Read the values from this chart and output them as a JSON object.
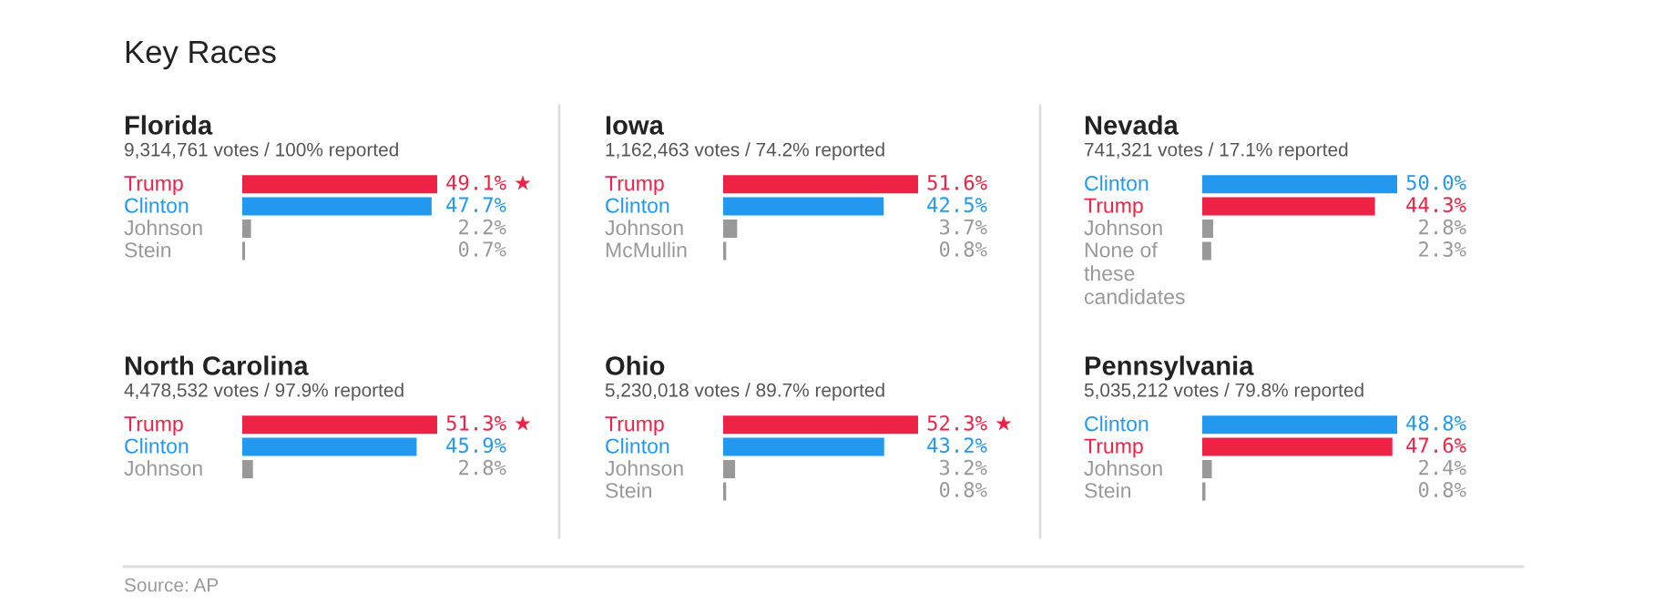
{
  "chart_data": [
    {
      "type": "other",
      "title": "Key Races",
      "annotations": [
        "Source: AP"
      ]
    },
    {
      "type": "bar",
      "orientation": "horizontal",
      "title": "Florida",
      "subtitle": "9,314,761 votes / 100% reported",
      "categories": [
        "Trump",
        "Clinton",
        "Johnson",
        "Stein"
      ],
      "values": [
        49.1,
        47.7,
        2.2,
        0.7
      ],
      "value_labels": [
        "49.1%",
        "47.7%",
        "2.2%",
        "0.7%"
      ],
      "colors": [
        "#ee2244",
        "#2299ee",
        "#999999",
        "#999999"
      ],
      "annotations": [
        "★"
      ],
      "tick_labels": "y",
      "grid": false,
      "legend": false
    },
    {
      "type": "bar",
      "orientation": "horizontal",
      "title": "Iowa",
      "subtitle": "1,162,463 votes / 74.2% reported",
      "categories": [
        "Trump",
        "Clinton",
        "Johnson",
        "McMullin"
      ],
      "values": [
        51.6,
        42.5,
        3.7,
        0.8
      ],
      "value_labels": [
        "51.6%",
        "42.5%",
        "3.7%",
        "0.8%"
      ],
      "colors": [
        "#ee2244",
        "#2299ee",
        "#999999",
        "#999999"
      ],
      "tick_labels": "y",
      "grid": false,
      "legend": false
    },
    {
      "type": "bar",
      "orientation": "horizontal",
      "title": "Nevada",
      "subtitle": "741,321 votes / 17.1% reported",
      "categories": [
        "Clinton",
        "Trump",
        "Johnson",
        "None of\nthese\ncandidates"
      ],
      "values": [
        50.0,
        44.3,
        2.8,
        2.3
      ],
      "value_labels": [
        "50.0%",
        "44.3%",
        "2.8%",
        "2.3%"
      ],
      "colors": [
        "#2299ee",
        "#ee2244",
        "#999999",
        "#999999"
      ],
      "tick_labels": "y",
      "grid": false,
      "legend": false
    },
    {
      "type": "bar",
      "orientation": "horizontal",
      "title": "North Carolina",
      "subtitle": "4,478,532 votes / 97.9% reported",
      "categories": [
        "Trump",
        "Clinton",
        "Johnson"
      ],
      "values": [
        51.3,
        45.9,
        2.8
      ],
      "value_labels": [
        "51.3%",
        "45.9%",
        "2.8%"
      ],
      "colors": [
        "#ee2244",
        "#2299ee",
        "#999999"
      ],
      "annotations": [
        "★"
      ],
      "tick_labels": "y",
      "grid": false,
      "legend": false
    },
    {
      "type": "bar",
      "orientation": "horizontal",
      "title": "Ohio",
      "subtitle": "5,230,018 votes / 89.7% reported",
      "categories": [
        "Trump",
        "Clinton",
        "Johnson",
        "Stein"
      ],
      "values": [
        52.3,
        43.2,
        3.2,
        0.8
      ],
      "value_labels": [
        "52.3%",
        "43.2%",
        "3.2%",
        "0.8%"
      ],
      "colors": [
        "#ee2244",
        "#2299ee",
        "#999999",
        "#999999"
      ],
      "annotations": [
        "★"
      ],
      "tick_labels": "y",
      "grid": false,
      "legend": false
    },
    {
      "type": "bar",
      "orientation": "horizontal",
      "title": "Pennsylvania",
      "subtitle": "5,035,212 votes / 79.8% reported",
      "categories": [
        "Clinton",
        "Trump",
        "Johnson",
        "Stein"
      ],
      "values": [
        48.8,
        47.6,
        2.4,
        0.8
      ],
      "value_labels": [
        "48.8%",
        "47.6%",
        "2.4%",
        "0.8%"
      ],
      "colors": [
        "#2299ee",
        "#ee2244",
        "#999999",
        "#999999"
      ],
      "tick_labels": "y",
      "grid": false,
      "legend": false
    }
  ]
}
